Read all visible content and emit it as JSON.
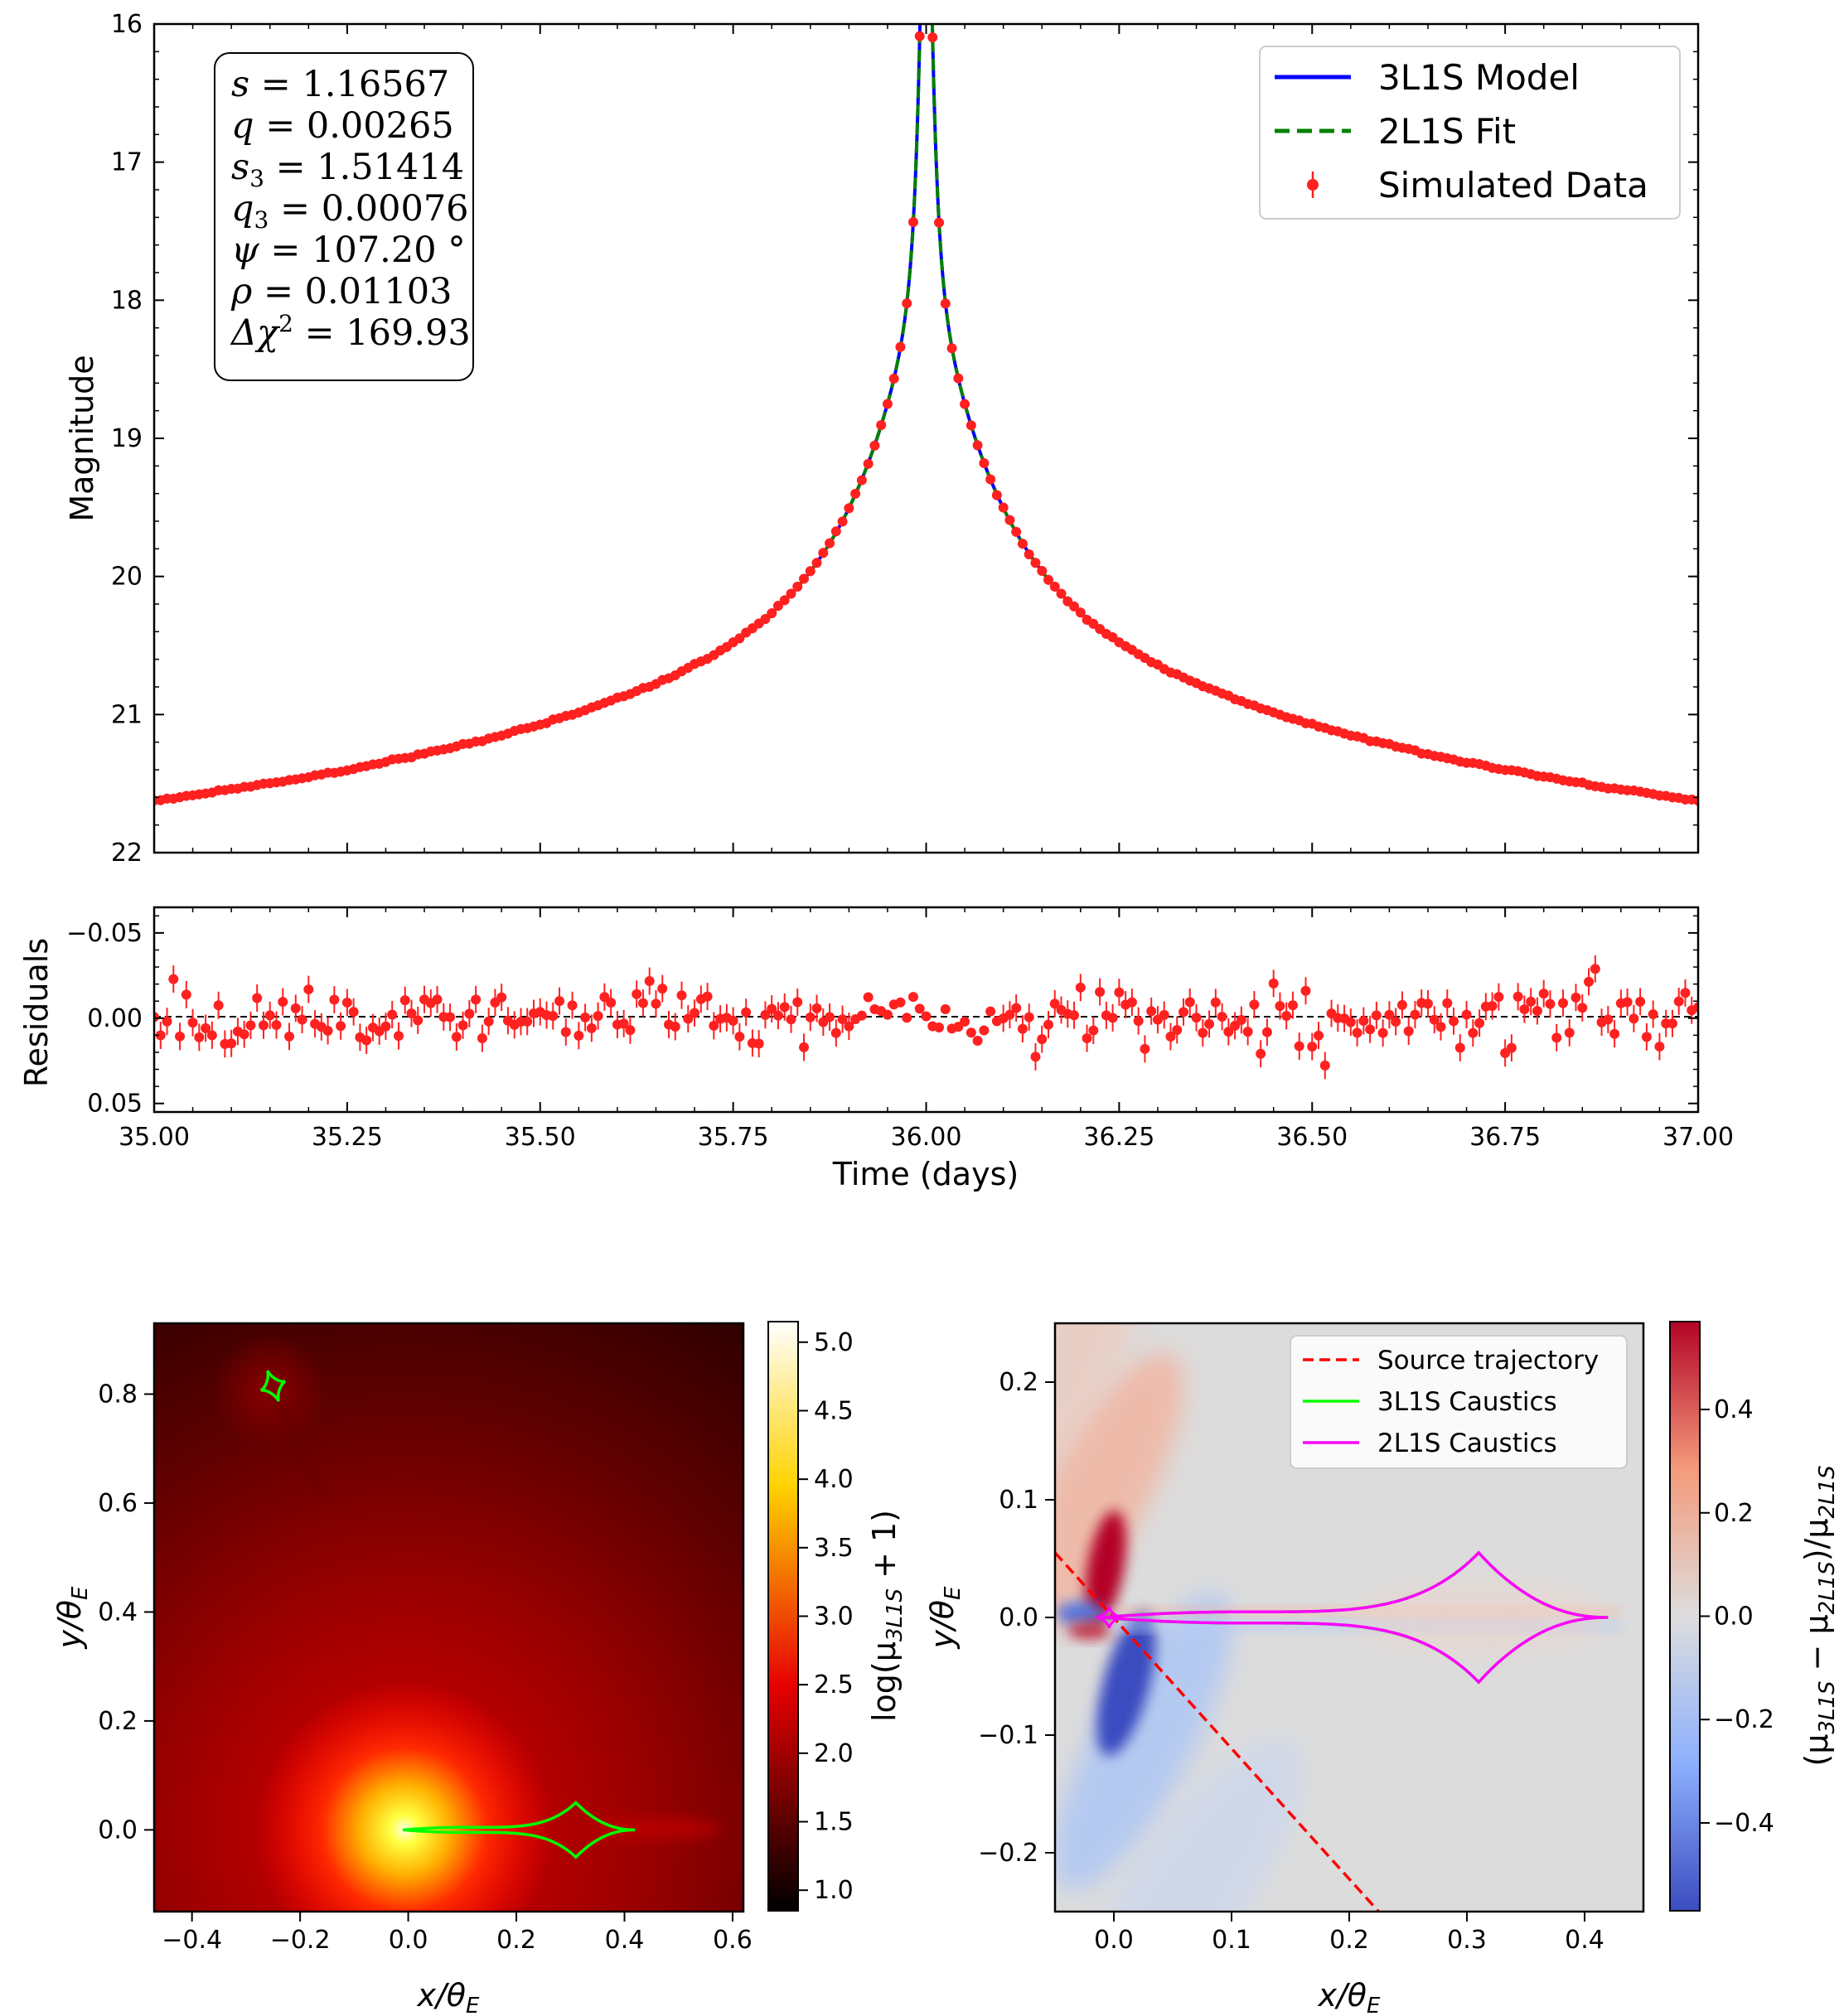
{
  "chart_data": [
    {
      "type": "line",
      "panel": "light-curve",
      "ylabel": "Magnitude",
      "xlim": [
        35.0,
        37.0
      ],
      "ylim": [
        22,
        16
      ],
      "y_inverted": true,
      "yticks": [
        "16",
        "17",
        "18",
        "19",
        "20",
        "21",
        "22"
      ],
      "legend_position": "top-right",
      "series": [
        {
          "name": "3L1S Model",
          "color": "#0000ff",
          "style": "solid"
        },
        {
          "name": "2L1S Fit",
          "color": "#008000",
          "style": "dashed"
        },
        {
          "name": "Simulated Data",
          "color": "#ff2020",
          "style": "errorbar-points"
        }
      ],
      "model": {
        "t0": 36.0,
        "peak_mag": 16.38,
        "baseline_mag": 21.72,
        "shape": "cusp-peak"
      },
      "sample_points": {
        "x": [
          35.0,
          35.25,
          35.5,
          35.75,
          35.9,
          35.95,
          35.98,
          36.0,
          36.02,
          36.05,
          36.1,
          36.25,
          36.5,
          36.75,
          37.0
        ],
        "y": [
          21.68,
          21.55,
          21.23,
          20.62,
          19.8,
          19.05,
          18.0,
          16.42,
          17.8,
          18.9,
          19.75,
          20.65,
          21.25,
          21.55,
          21.7
        ]
      },
      "annotation_box": [
        {
          "lhs": "s",
          "rhs": "= 1.16567"
        },
        {
          "lhs": "q",
          "rhs": "= 0.00265"
        },
        {
          "lhs": "s",
          "sub": "3",
          "rhs": "= 1.51414"
        },
        {
          "lhs": "q",
          "sub": "3",
          "rhs": "= 0.00076"
        },
        {
          "lhs": "ψ",
          "rhs": "= 107.20 °"
        },
        {
          "lhs": "ρ",
          "rhs": "= 0.01103"
        },
        {
          "lhs": "Δχ",
          "sup": "2",
          "rhs": "= 169.93"
        }
      ]
    },
    {
      "type": "scatter",
      "panel": "residuals",
      "xlabel": "Time (days)",
      "ylabel": "Residuals",
      "xlim": [
        35.0,
        37.0
      ],
      "ylim": [
        0.055,
        -0.065
      ],
      "y_inverted": true,
      "xticks": [
        "35.00",
        "35.25",
        "35.50",
        "35.75",
        "36.00",
        "36.25",
        "36.50",
        "36.75",
        "37.00"
      ],
      "yticks": [
        "−0.05",
        "0.00",
        "0.05"
      ],
      "series": [
        {
          "color": "#ff2020",
          "style": "errorbar-points",
          "scatter": 0.01,
          "error": 0.008
        }
      ],
      "reference_line": {
        "y": 0.0,
        "style": "dashed"
      }
    },
    {
      "type": "heatmap",
      "panel": "magnification-map",
      "xlabel": "x/θE",
      "ylabel": "y/θE",
      "xlim": [
        -0.47,
        0.62
      ],
      "ylim": [
        -0.15,
        0.93
      ],
      "xticks": [
        "−0.4",
        "−0.2",
        "0.0",
        "0.2",
        "0.4",
        "0.6"
      ],
      "yticks": [
        "0.0",
        "0.2",
        "0.4",
        "0.6",
        "0.8"
      ],
      "colorbar": {
        "label": "log(μ3L1S + 1)",
        "range": [
          0.85,
          5.15
        ],
        "ticks": [
          "1.0",
          "1.5",
          "2.0",
          "2.5",
          "3.0",
          "3.5",
          "4.0",
          "4.5",
          "5.0"
        ],
        "colormap": "hot"
      },
      "caustic_color": "#00ff00",
      "caustics": [
        {
          "kind": "central-planetary-pair",
          "x_range": [
            -0.01,
            0.42
          ],
          "cusp_x": 0.31,
          "half_height": 0.05
        },
        {
          "kind": "small-diamond",
          "center": [
            -0.25,
            0.815
          ],
          "size": 0.03
        }
      ]
    },
    {
      "type": "heatmap",
      "panel": "difference-map",
      "xlabel": "x/θE",
      "ylabel": "y/θE",
      "xlim": [
        -0.05,
        0.45
      ],
      "ylim": [
        -0.25,
        0.25
      ],
      "xticks": [
        "0.0",
        "0.1",
        "0.2",
        "0.3",
        "0.4"
      ],
      "yticks": [
        "−0.2",
        "−0.1",
        "0.0",
        "0.1",
        "0.2"
      ],
      "colorbar": {
        "label": "(μ3L1S − μ2L1S)/μ2L1S",
        "range": [
          -0.57,
          0.57
        ],
        "ticks": [
          "−0.4",
          "−0.2",
          "0.0",
          "0.2",
          "0.4"
        ],
        "colormap": "coolwarm"
      },
      "legend_position": "top-right",
      "series": [
        {
          "name": "Source trajectory",
          "color": "#ff0000",
          "style": "dashed",
          "from": [
            -0.05,
            0.055
          ],
          "to": [
            0.225,
            -0.25
          ]
        },
        {
          "name": "3L1S Caustics",
          "color": "#00ff00",
          "style": "solid"
        },
        {
          "name": "2L1S Caustics",
          "color": "#ff00ff",
          "style": "solid"
        }
      ]
    }
  ]
}
